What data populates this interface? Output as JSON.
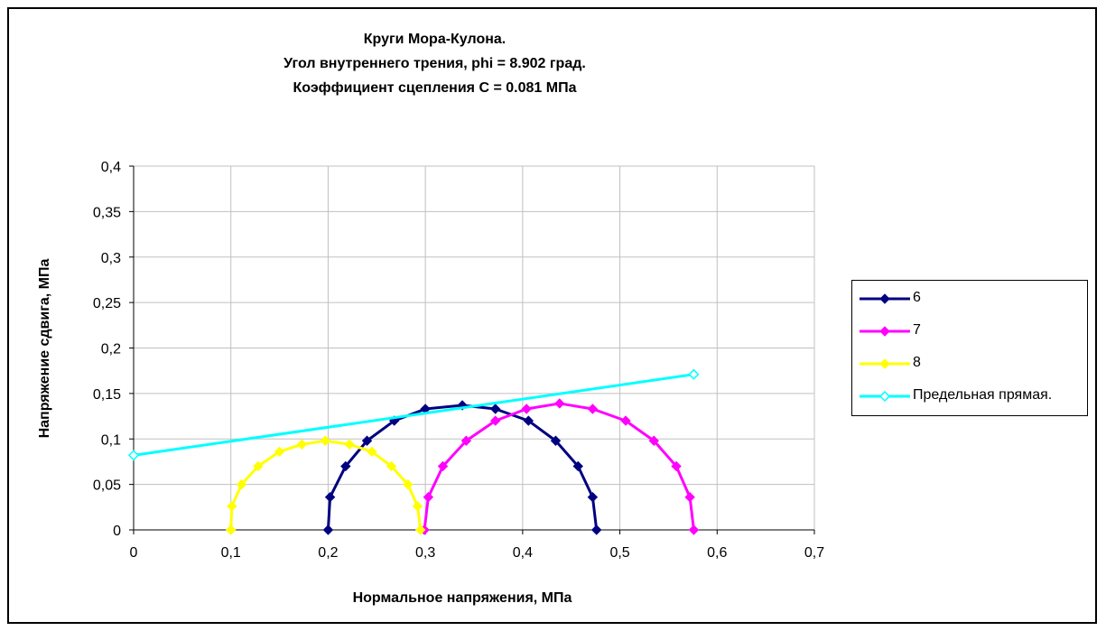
{
  "chart_data": {
    "type": "scatter",
    "title_lines": [
      "Круги Мора-Кулона.",
      "Угол внутреннего трения, phi = 8.902 град.",
      "Коэффициент сцепления С = 0.081 МПа"
    ],
    "xlabel": "Нормальное напряжения, МПа",
    "ylabel": "Напряжение сдвига, МПа",
    "xlim": [
      0,
      0.7
    ],
    "ylim": [
      0,
      0.4
    ],
    "x_ticks": [
      "0",
      "0,1",
      "0,2",
      "0,3",
      "0,4",
      "0,5",
      "0,6",
      "0,7"
    ],
    "x_tick_values": [
      0,
      0.1,
      0.2,
      0.3,
      0.4,
      0.5,
      0.6,
      0.7
    ],
    "y_ticks": [
      "0",
      "0,05",
      "0,1",
      "0,15",
      "0,2",
      "0,25",
      "0,3",
      "0,35",
      "0,4"
    ],
    "y_tick_values": [
      0,
      0.05,
      0.1,
      0.15,
      0.2,
      0.25,
      0.3,
      0.35,
      0.4
    ],
    "grid": true,
    "legend_position": "right",
    "series": [
      {
        "name": "6",
        "color": "#000080",
        "marker": "filled-diamond",
        "points": [
          [
            0.2,
            0.0
          ],
          [
            0.202,
            0.036
          ],
          [
            0.218,
            0.07
          ],
          [
            0.24,
            0.098
          ],
          [
            0.268,
            0.12
          ],
          [
            0.3,
            0.133
          ],
          [
            0.338,
            0.137
          ],
          [
            0.372,
            0.133
          ],
          [
            0.406,
            0.12
          ],
          [
            0.434,
            0.098
          ],
          [
            0.457,
            0.07
          ],
          [
            0.472,
            0.036
          ],
          [
            0.476,
            0.0
          ]
        ]
      },
      {
        "name": "7",
        "color": "#ff00ff",
        "marker": "filled-diamond",
        "points": [
          [
            0.299,
            0.0
          ],
          [
            0.303,
            0.036
          ],
          [
            0.318,
            0.07
          ],
          [
            0.342,
            0.098
          ],
          [
            0.372,
            0.12
          ],
          [
            0.404,
            0.133
          ],
          [
            0.438,
            0.139
          ],
          [
            0.472,
            0.133
          ],
          [
            0.506,
            0.12
          ],
          [
            0.535,
            0.098
          ],
          [
            0.558,
            0.07
          ],
          [
            0.572,
            0.036
          ],
          [
            0.576,
            0.0
          ]
        ]
      },
      {
        "name": "8",
        "color": "#ffff00",
        "marker": "filled-diamond",
        "points": [
          [
            0.1,
            0.0
          ],
          [
            0.101,
            0.026
          ],
          [
            0.111,
            0.05
          ],
          [
            0.128,
            0.07
          ],
          [
            0.15,
            0.086
          ],
          [
            0.173,
            0.094
          ],
          [
            0.197,
            0.098
          ],
          [
            0.222,
            0.094
          ],
          [
            0.245,
            0.086
          ],
          [
            0.265,
            0.07
          ],
          [
            0.282,
            0.05
          ],
          [
            0.292,
            0.026
          ],
          [
            0.295,
            0.0
          ]
        ]
      },
      {
        "name": "Предельная прямая.",
        "color": "#00ffff",
        "marker": "open-diamond",
        "points": [
          [
            0.0,
            0.082
          ],
          [
            0.576,
            0.171
          ]
        ]
      }
    ]
  }
}
